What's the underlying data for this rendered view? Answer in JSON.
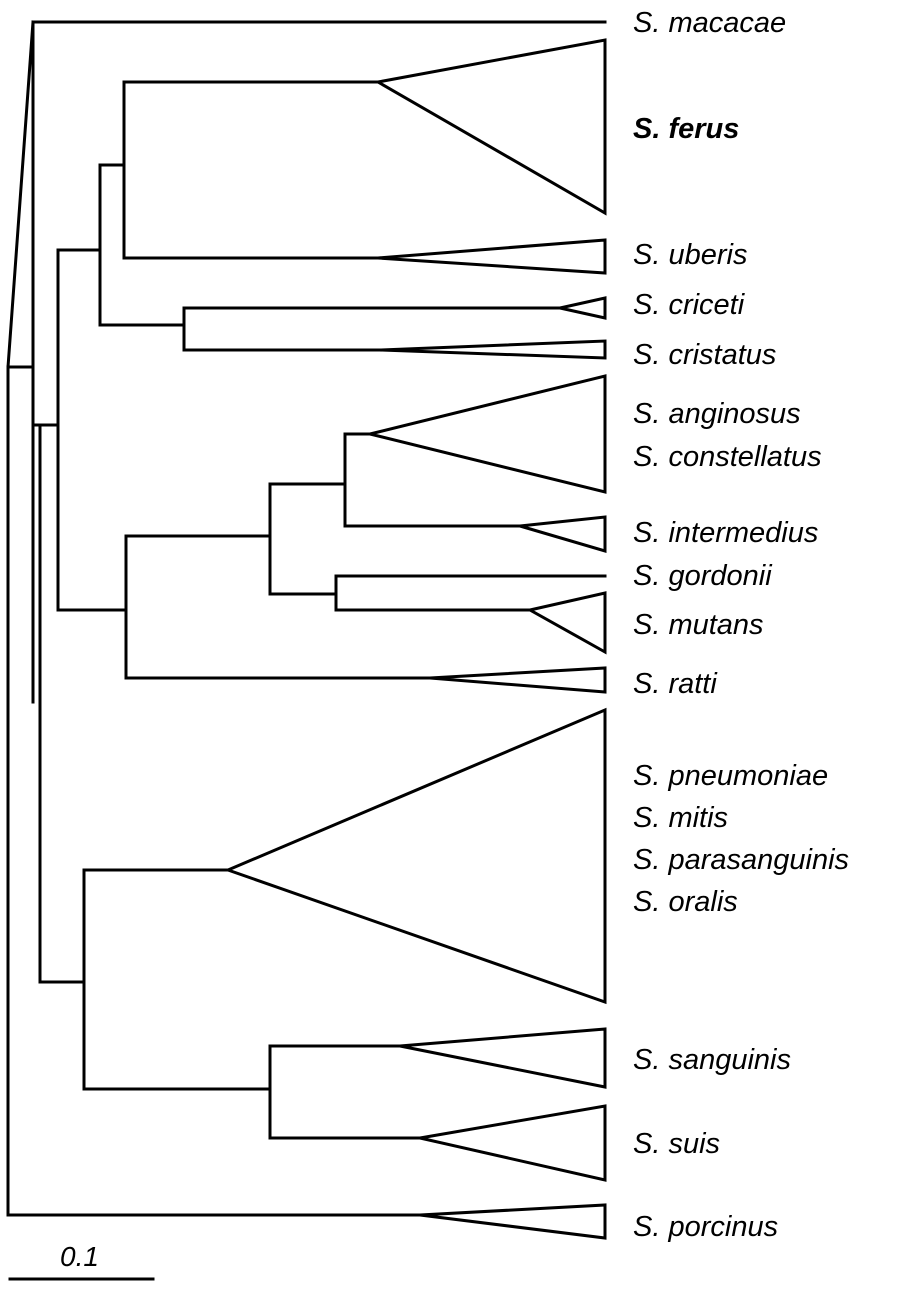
{
  "taxa": [
    {
      "id": "macacae",
      "label": "S. macacae",
      "bold": false
    },
    {
      "id": "ferus",
      "label": "S. ferus",
      "bold": true
    },
    {
      "id": "uberis",
      "label": "S. uberis",
      "bold": false
    },
    {
      "id": "criceti",
      "label": "S. criceti",
      "bold": false
    },
    {
      "id": "cristatus",
      "label": "S. cristatus",
      "bold": false
    },
    {
      "id": "anginosus",
      "label": "S. anginosus",
      "bold": false
    },
    {
      "id": "constellatus",
      "label": "S. constellatus",
      "bold": false
    },
    {
      "id": "intermedius",
      "label": "S. intermedius",
      "bold": false
    },
    {
      "id": "gordonii",
      "label": "S. gordonii",
      "bold": false
    },
    {
      "id": "mutans",
      "label": "S. mutans",
      "bold": false
    },
    {
      "id": "ratti",
      "label": "S. ratti",
      "bold": false
    },
    {
      "id": "pneumoniae",
      "label": "S. pneumoniae",
      "bold": false
    },
    {
      "id": "mitis",
      "label": "S. mitis",
      "bold": false
    },
    {
      "id": "parasanguinis",
      "label": "S. parasanguinis",
      "bold": false
    },
    {
      "id": "oralis",
      "label": "S. oralis",
      "bold": false
    },
    {
      "id": "sanguinis",
      "label": "S. sanguinis",
      "bold": false
    },
    {
      "id": "suis",
      "label": "S. suis",
      "bold": false
    },
    {
      "id": "porcinus",
      "label": "S. porcinus",
      "bold": false
    }
  ],
  "scale_bar": {
    "label": "0.1"
  },
  "colors": {
    "line": "#000000",
    "background": "#ffffff"
  }
}
